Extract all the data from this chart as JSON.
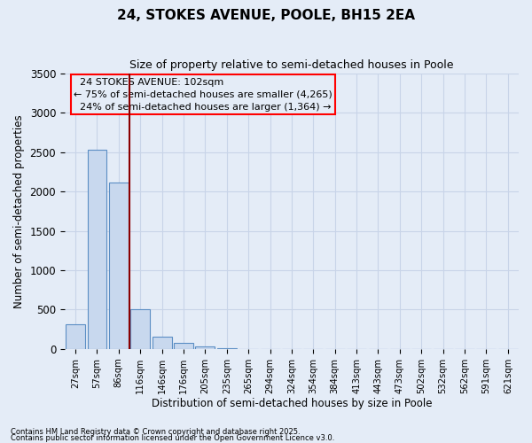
{
  "title": "24, STOKES AVENUE, POOLE, BH15 2EA",
  "subtitle": "Size of property relative to semi-detached houses in Poole",
  "xlabel": "Distribution of semi-detached houses by size in Poole",
  "ylabel": "Number of semi-detached properties",
  "bar_labels": [
    "27sqm",
    "57sqm",
    "86sqm",
    "116sqm",
    "146sqm",
    "176sqm",
    "205sqm",
    "235sqm",
    "265sqm",
    "294sqm",
    "324sqm",
    "354sqm",
    "384sqm",
    "413sqm",
    "443sqm",
    "473sqm",
    "502sqm",
    "532sqm",
    "562sqm",
    "591sqm",
    "621sqm"
  ],
  "bar_values": [
    310,
    2530,
    2120,
    510,
    160,
    75,
    30,
    5,
    0,
    0,
    0,
    0,
    0,
    0,
    0,
    0,
    0,
    0,
    0,
    0,
    0
  ],
  "bar_color": "#c8d8ee",
  "bar_edge_color": "#5b8ec4",
  "ylim": [
    0,
    3500
  ],
  "yticks": [
    0,
    500,
    1000,
    1500,
    2000,
    2500,
    3000,
    3500
  ],
  "property_label": "24 STOKES AVENUE: 102sqm",
  "pct_smaller": 75,
  "count_smaller": 4265,
  "pct_larger": 24,
  "count_larger": 1364,
  "vline_color": "#8b0000",
  "vline_x_index": 2.5,
  "grid_color": "#c8d4e8",
  "bg_color": "#e4ecf7",
  "footnote1": "Contains HM Land Registry data © Crown copyright and database right 2025.",
  "footnote2": "Contains public sector information licensed under the Open Government Licence v3.0."
}
